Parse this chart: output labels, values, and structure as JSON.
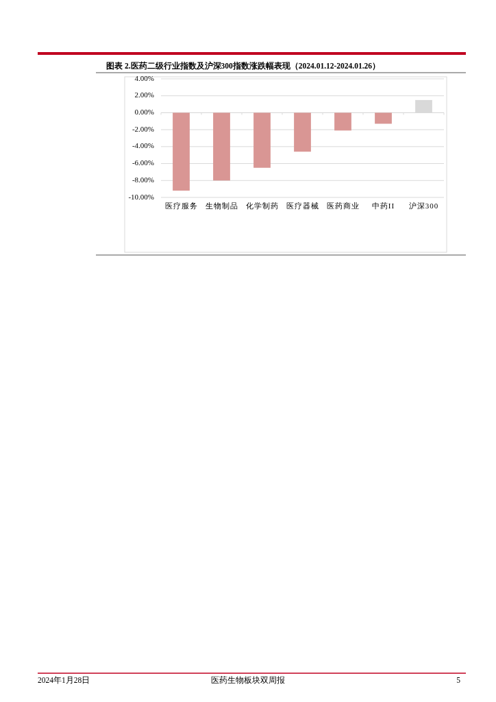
{
  "chart_data": {
    "type": "bar",
    "title": "图表 2.医药二级行业指数及沪深300指数涨跌幅表现（2024.01.12-2024.01.26）",
    "categories": [
      "医疗服务",
      "生物制品",
      "化学制药",
      "医疗器械",
      "医药商业",
      "中药II",
      "沪深300"
    ],
    "values": [
      -9.2,
      -8.0,
      -6.5,
      -4.6,
      -2.1,
      -1.3,
      1.5
    ],
    "colors": [
      "#d99694",
      "#d99694",
      "#d99694",
      "#d99694",
      "#d99694",
      "#d99694",
      "#d9d9d9"
    ],
    "ylim": [
      -10,
      4
    ],
    "yticks": [
      {
        "value": 4,
        "label": "4.00%"
      },
      {
        "value": 2,
        "label": "2.00%"
      },
      {
        "value": 0,
        "label": "0.00%"
      },
      {
        "value": -2,
        "label": "-2.00%"
      },
      {
        "value": -4,
        "label": "-4.00%"
      },
      {
        "value": -6,
        "label": "-6.00%"
      },
      {
        "value": -8,
        "label": "-8.00%"
      },
      {
        "value": -10,
        "label": "-10.00%"
      }
    ],
    "grid": "y",
    "annotations": [
      "2024年1月28日",
      "医药生物板块双周报",
      "5"
    ]
  }
}
